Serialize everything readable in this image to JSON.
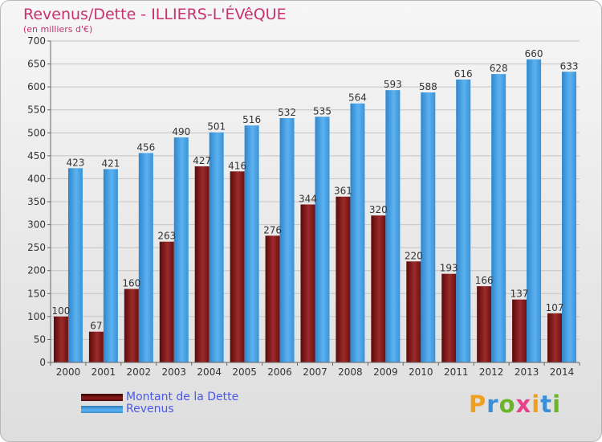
{
  "header": {
    "title": "Revenus/Dette - ILLIERS-L'ÉVêQUE",
    "subtitle": "(en milliers d'€)"
  },
  "legend": {
    "debt_label": "Montant de la Dette",
    "revenue_label": "Revenus"
  },
  "brand": {
    "letters": [
      "P",
      "r",
      "o",
      "x",
      "i",
      "t",
      "i"
    ],
    "colors": [
      "#f0a020",
      "#3a8fd8",
      "#6ab52a",
      "#e8408a",
      "#f0a020",
      "#3a8fd8",
      "#6ab52a"
    ]
  },
  "colors": {
    "debt": "#8b1a1a",
    "revenue": "#4aa3e6",
    "title": "#c8326e",
    "legend_text": "#4a58e8"
  },
  "chart_data": {
    "type": "bar",
    "categories": [
      "2000",
      "2001",
      "2002",
      "2003",
      "2004",
      "2005",
      "2006",
      "2007",
      "2008",
      "2009",
      "2010",
      "2011",
      "2012",
      "2013",
      "2014"
    ],
    "series": [
      {
        "name": "Montant de la Dette",
        "values": [
          100,
          67,
          160,
          263,
          427,
          416,
          276,
          344,
          361,
          320,
          220,
          193,
          166,
          137,
          107
        ]
      },
      {
        "name": "Revenus",
        "values": [
          423,
          421,
          456,
          490,
          501,
          516,
          532,
          535,
          564,
          593,
          588,
          616,
          628,
          660,
          633
        ]
      }
    ],
    "title": "Revenus/Dette - ILLIERS-L'ÉVêQUE",
    "xlabel": "",
    "ylabel": "",
    "ylim": [
      0,
      700
    ],
    "ytick_step": 50,
    "grid": true,
    "legend_position": "bottom-left"
  }
}
